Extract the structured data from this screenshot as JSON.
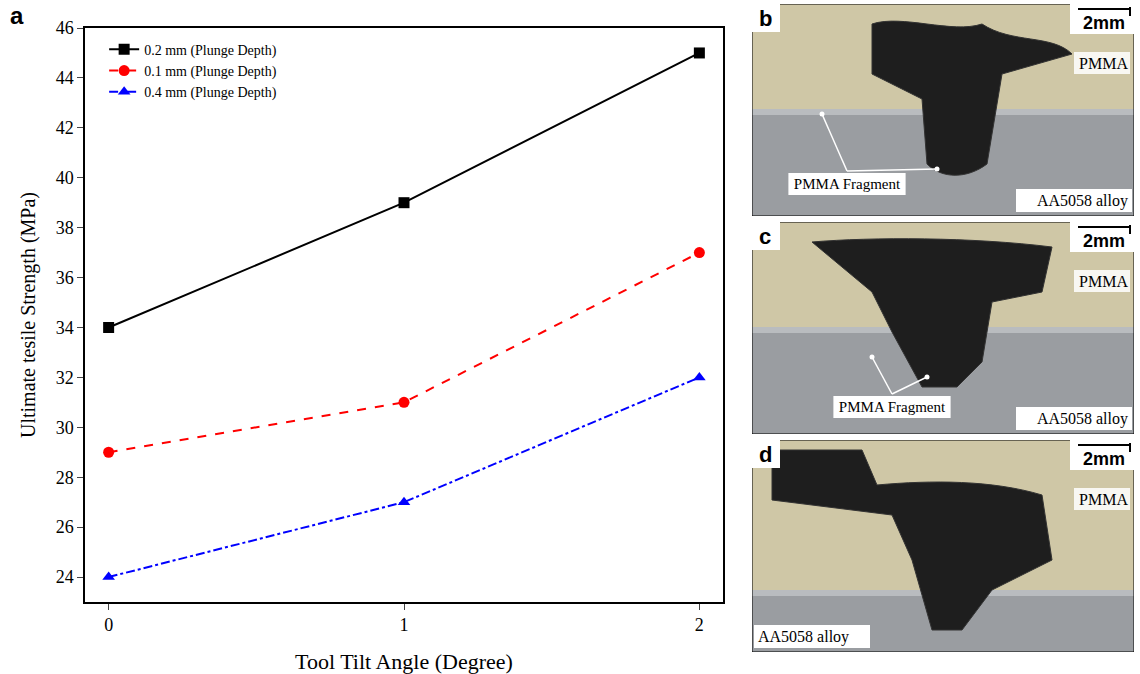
{
  "panel_label": "a",
  "chart_data": {
    "type": "line",
    "x_label": "Tool Tilt Angle (Degree)",
    "y_label": "Ultimate tesile Strength (MPa)",
    "x": [
      0,
      1,
      2
    ],
    "series": [
      {
        "name": "0.2 mm (Plunge Depth)",
        "color": "#000000",
        "marker": "square",
        "line_style": "solid",
        "values": [
          34,
          39,
          45
        ]
      },
      {
        "name": "0.1 mm (Plunge Depth)",
        "color": "#ff0000",
        "marker": "circle",
        "line_style": "dash",
        "values": [
          29,
          31,
          37
        ]
      },
      {
        "name": "0.4 mm (Plunge Depth)",
        "color": "#0000ff",
        "marker": "triangle-up",
        "line_style": "dashdot",
        "values": [
          24,
          27,
          32
        ]
      }
    ],
    "xlim": [
      -0.08,
      2.08
    ],
    "xticks": [
      0,
      1,
      2
    ],
    "ylim": [
      23,
      46
    ],
    "yticks": [
      24,
      26,
      28,
      30,
      32,
      34,
      36,
      38,
      40,
      42,
      44,
      46
    ],
    "grid": false,
    "legend": "top-left"
  },
  "panels": [
    {
      "label": "b",
      "scale_bar": "2mm",
      "upper_material": "PMMA",
      "callout": "PMMA Fragment",
      "lower_material": "AA5058 alloy"
    },
    {
      "label": "c",
      "scale_bar": "2mm",
      "upper_material": "PMMA",
      "callout": "PMMA Fragment",
      "lower_material": "AA5058 alloy"
    },
    {
      "label": "d",
      "scale_bar": "2mm",
      "upper_material": "PMMA",
      "lower_material": "AA5058 alloy"
    }
  ]
}
